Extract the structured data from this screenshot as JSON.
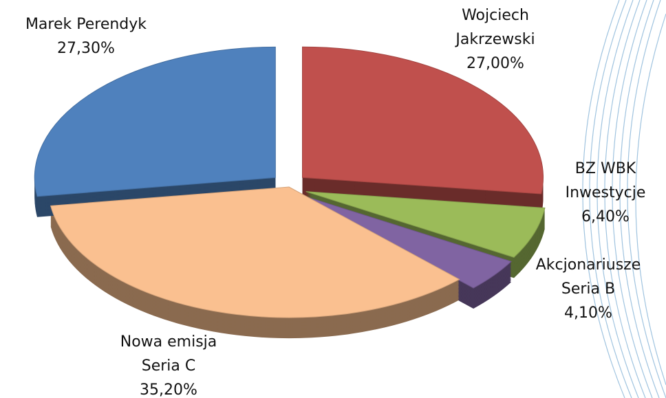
{
  "chart_data": {
    "type": "pie",
    "categories": [
      "Wojciech Jakrzewski",
      "BZ WBK Inwestycje",
      "Akcjonariusze Seria B",
      "Nowa emisja Seria C",
      "Marek Perendyk"
    ],
    "values": [
      27.0,
      6.4,
      4.1,
      35.2,
      27.3
    ],
    "value_labels": [
      "27,00%",
      "6,40%",
      "4,10%",
      "35,20%",
      "27,30%"
    ],
    "colors": [
      "#c0504d",
      "#9bbb59",
      "#8064a2",
      "#fac090",
      "#4f81bd"
    ],
    "exploded": [
      true,
      true,
      true,
      false,
      true
    ]
  }
}
